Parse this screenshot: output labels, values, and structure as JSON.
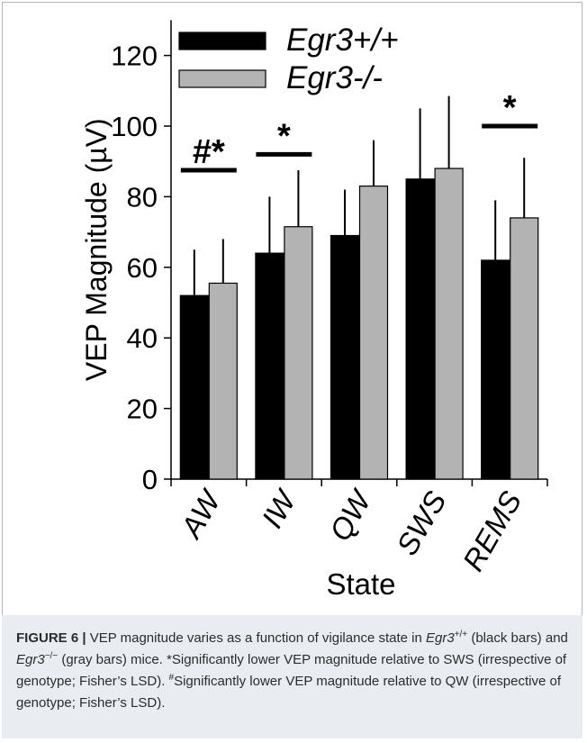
{
  "chart_data": {
    "type": "bar",
    "categories": [
      "AW",
      "IW",
      "QW",
      "SWS",
      "REMS"
    ],
    "ylabel": "VEP Magnitude (µV)",
    "xlabel": "State",
    "ylim": [
      0,
      130
    ],
    "yticks": [
      0,
      20,
      40,
      60,
      80,
      100,
      120
    ],
    "series": [
      {
        "name": "Egr3+/+",
        "color": "#000000",
        "values": [
          52,
          64,
          69,
          85,
          62
        ],
        "errors": [
          13,
          16,
          13,
          20,
          17
        ]
      },
      {
        "name": "Egr3-/-",
        "color": "#b3b3b3",
        "values": [
          55.5,
          71.5,
          83,
          88,
          74
        ],
        "errors": [
          12.5,
          16,
          13,
          20.5,
          17
        ]
      }
    ],
    "annotations": [
      {
        "category": "AW",
        "text": "#*",
        "y": 87.5
      },
      {
        "category": "IW",
        "text": "*",
        "y": 92
      },
      {
        "category": "REMS",
        "text": "*",
        "y": 100
      }
    ],
    "legend": "top-right"
  },
  "caption": {
    "label": "FIGURE 6 |",
    "t1": " VEP magnitude varies as a function of vigilance state in ",
    "gene1": "Egr3",
    "sup1": "+/+",
    "t2": " (black bars) and ",
    "gene2": "Egr3",
    "sup2": "−/−",
    "t3": " (gray bars) mice. *Significantly lower VEP magnitude relative to SWS (irrespective of genotype; Fisher’s LSD). ",
    "hash": "#",
    "t4": "Significantly lower VEP magnitude relative to QW (irrespective of genotype; Fisher’s LSD)."
  }
}
